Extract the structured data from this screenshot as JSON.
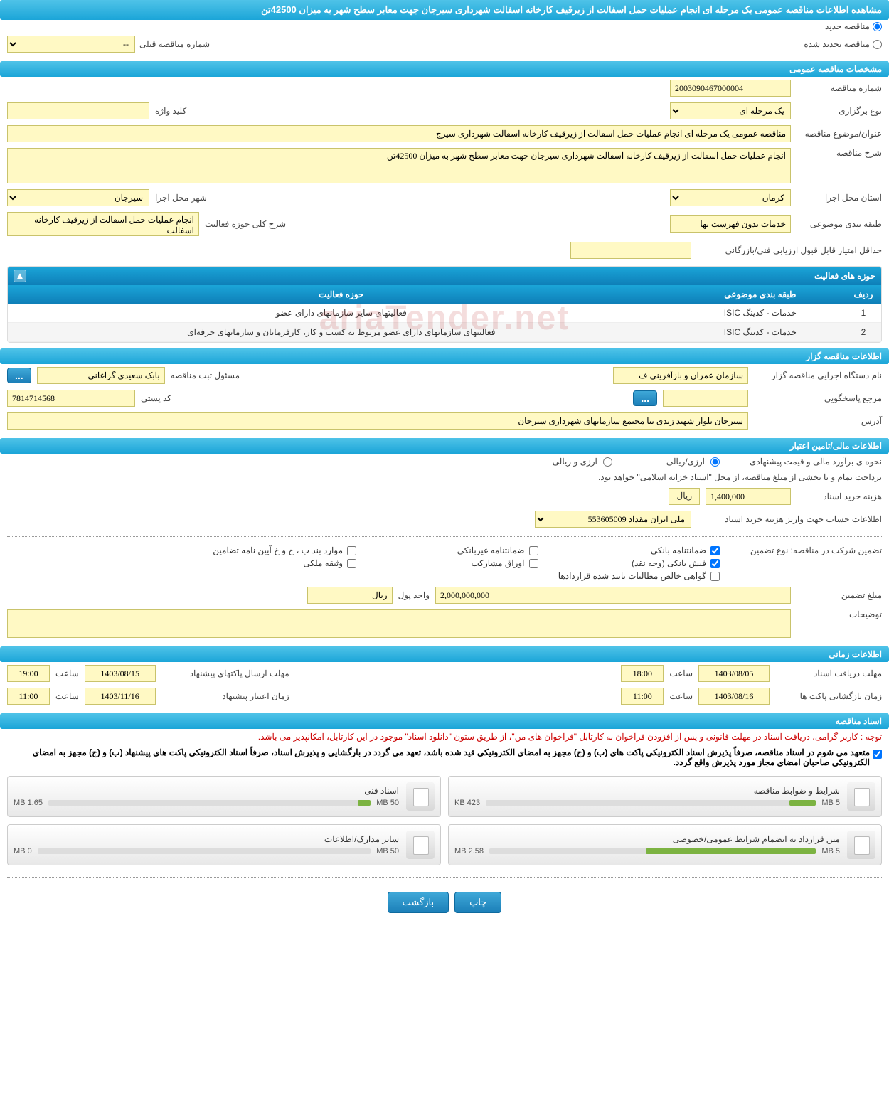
{
  "page_title": "مشاهده اطلاعات مناقصه عمومی یک مرحله ای انجام عملیات حمل اسفالت از زیرقیف کارخانه اسفالت شهرداری سیرجان جهت معابر سطح شهر به میزان 42500تن",
  "watermark": "ariaTender.net",
  "radio": {
    "new_tender": "مناقصه جدید",
    "renewed_tender": "مناقصه تجدید شده"
  },
  "prev_tender": {
    "label": "شماره مناقصه قبلی",
    "value": "--"
  },
  "section_general": "مشخصات مناقصه عمومی",
  "general": {
    "tender_no_label": "شماره مناقصه",
    "tender_no": "2003090467000004",
    "type_label": "نوع برگزاری",
    "type": "یک مرحله ای",
    "keyword_label": "کلید واژه",
    "keyword": "",
    "subject_label": "عنوان/موضوع مناقصه",
    "subject": "مناقصه عمومی یک مرحله ای انجام عملیات حمل اسفالت از زیرقیف کارخانه اسفالت شهرداری سیرج",
    "desc_label": "شرح مناقصه",
    "desc": "انجام عملیات حمل اسفالت از زیرقیف کارخانه اسفالت شهرداری سیرجان جهت معابر سطح شهر به میزان 42500تن",
    "province_label": "استان محل اجرا",
    "province": "کرمان",
    "city_label": "شهر محل اجرا",
    "city": "سیرجان",
    "category_label": "طبقه بندی موضوعی",
    "category": "خدمات بدون فهرست بها",
    "scope_label": "شرح کلی حوزه فعالیت",
    "scope": "انجام عملیات حمل اسفالت از زیرقیف کارخانه اسفالت",
    "min_score_label": "حداقل امتیاز قابل قبول ارزیابی فنی/بازرگانی",
    "min_score": ""
  },
  "activities_panel": {
    "title": "حوزه های فعالیت",
    "cols": {
      "row": "ردیف",
      "category": "طبقه بندی موضوعی",
      "scope": "حوزه فعالیت"
    },
    "rows": [
      {
        "n": "1",
        "cat": "خدمات - کدینگ ISIC",
        "scope": "فعالیتهای سایر سازمانهای دارای عضو"
      },
      {
        "n": "2",
        "cat": "خدمات - کدینگ ISIC",
        "scope": "فعالیتهای سازمانهای دارای عضو مربوط به کسب و کار، کارفرمایان و سازمانهای حرفه‌ای"
      }
    ]
  },
  "section_holder": "اطلاعات مناقصه گزار",
  "holder": {
    "org_label": "نام دستگاه اجرایی مناقصه گزار",
    "org": "سازمان عمران و بازآفرینی ف",
    "registrar_label": "مسئول ثبت مناقصه",
    "registrar": "بابک سعیدی گراغانی",
    "contact_label": "مرجع پاسخگویی",
    "contact": "",
    "postal_label": "کد پستی",
    "postal": "7814714568",
    "address_label": "آدرس",
    "address": "سیرجان بلوار شهید زندی نیا مجتمع سازمانهای شهرداری سیرجان",
    "dots": "..."
  },
  "section_finance": "اطلاعات مالی/تامین اعتبار",
  "finance": {
    "method_label": "نحوه ی برآورد مالی و قیمت پیشنهادی",
    "method_arz_rial": "ارزی/ریالی",
    "method_arz_and_rial": "ارزی و ریالی",
    "payment_note": "برداخت تمام و یا بخشی از مبلغ مناقصه، از محل \"اسناد خزانه اسلامی\" خواهد بود.",
    "doc_cost_label": "هزینه خرید اسناد",
    "doc_cost": "1,400,000",
    "currency_rial": "ریال",
    "account_label": "اطلاعات حساب جهت واریز هزینه خرید اسناد",
    "account": "ملی ایران مقداد 553605009"
  },
  "guarantee": {
    "type_label": "تضمین شرکت در مناقصه:    نوع تضمین",
    "bank_guarantee": "ضمانتنامه بانکی",
    "nonbank_guarantee": "ضمانتنامه غیربانکی",
    "items_bjkh": "موارد بند ب ، ج و خ آیین نامه تضامین",
    "bank_slip": "فیش بانکی (وجه نقد)",
    "participation_bonds": "اوراق مشارکت",
    "property_bond": "وثیقه ملکی",
    "contract_cert": "گواهی خالص مطالبات تایید شده قراردادها",
    "amount_label": "مبلغ تضمین",
    "amount": "2,000,000,000",
    "unit_label": "واحد پول",
    "unit": "ریال",
    "notes_label": "توضیحات",
    "notes": ""
  },
  "section_timing": "اطلاعات زمانی",
  "timing": {
    "receipt_deadline_label": "مهلت دریافت اسناد",
    "receipt_date": "1403/08/05",
    "receipt_time": "18:00",
    "submit_deadline_label": "مهلت ارسال پاکتهای پیشنهاد",
    "submit_date": "1403/08/15",
    "submit_time": "19:00",
    "open_label": "زمان بازگشایی پاکت ها",
    "open_date": "1403/08/16",
    "open_time": "11:00",
    "validity_label": "زمان اعتبار پیشنهاد",
    "validity_date": "1403/11/16",
    "validity_time": "11:00",
    "time_label": "ساعت"
  },
  "section_docs": "اسناد مناقصه",
  "docs": {
    "notice1": "توجه : کاربر گرامی، دریافت اسناد در مهلت قانونی و پس از افزودن فراخوان به کارتابل \"فراخوان های من\"، از طریق ستون \"دانلود اسناد\" موجود در این کارتابل، امکانپذیر می باشد.",
    "notice2": "متعهد می شوم در اسناد مناقصه، صرفاً پذیرش اسناد الکترونیکی پاکت های (ب) و (ج) مجهز به امضای الکترونیکی قید شده باشد، تعهد می گردد در بارگشایی و پذیرش اسناد، صرفاً اسناد الکترونیکی پاکت های پیشنهاد (ب) و (ج) مجهز به امضای الکترونیکی صاحبان امضای مجاز مورد پذیرش واقع گردد.",
    "files": [
      {
        "title": "شرایط و ضوابط مناقصه",
        "size": "423 KB",
        "max": "5 MB",
        "pct": 8
      },
      {
        "title": "اسناد فنی",
        "size": "1.65 MB",
        "max": "50 MB",
        "pct": 4
      },
      {
        "title": "متن قرارداد به انضمام شرایط عمومی/خصوصی",
        "size": "2.58 MB",
        "max": "5 MB",
        "pct": 52
      },
      {
        "title": "سایر مدارک/اطلاعات",
        "size": "0 MB",
        "max": "50 MB",
        "pct": 0
      }
    ]
  },
  "buttons": {
    "print": "چاپ",
    "back": "بازگشت"
  },
  "colors": {
    "header_top": "#4fc3e8",
    "header_bottom": "#1ba5d8",
    "yellow_bg": "#fff9c4",
    "yellow_border": "#c9c36b",
    "btn_top": "#3fa8d8",
    "btn_bottom": "#1b7fb8"
  }
}
